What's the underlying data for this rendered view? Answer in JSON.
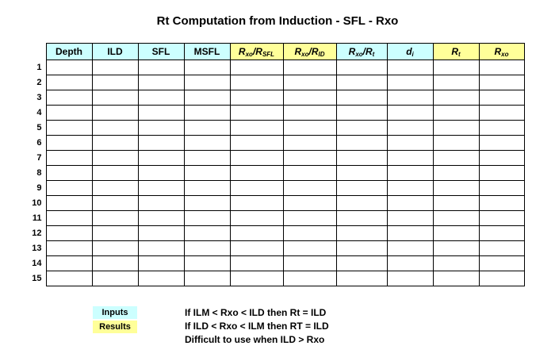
{
  "title": "Rt Computation from Induction - SFL - Rxo",
  "columns": {
    "depth": "Depth",
    "ild": "ILD",
    "sfl": "SFL",
    "msfl": "MSFL",
    "rxo_rsfl": {
      "a": "R",
      "a_sub": "xo",
      "sep": "/",
      "b": "R",
      "b_sub": "SFL"
    },
    "rxo_rid": {
      "a": "R",
      "a_sub": "xo",
      "sep": "/",
      "b": "R",
      "b_sub": "ID"
    },
    "rxo_rt": {
      "a": "R",
      "a_sub": "xo",
      "sep": "/",
      "b": "R",
      "b_sub": "t"
    },
    "di": {
      "a": "d",
      "a_sub": "i"
    },
    "rt": {
      "a": "R",
      "a_sub": "t"
    },
    "rxo": {
      "a": "R",
      "a_sub": "xo"
    }
  },
  "rows": [
    "1",
    "2",
    "3",
    "4",
    "5",
    "6",
    "7",
    "8",
    "9",
    "10",
    "11",
    "12",
    "13",
    "14",
    "15"
  ],
  "legend": {
    "inputs": "Inputs",
    "results": "Results"
  },
  "notes": [
    "If ILM < Rxo < ILD then Rt = ILD",
    "If ILD < Rxo < ILM then RT = ILD",
    "Difficult to use when ILD > Rxo"
  ],
  "colors": {
    "input": "#ccffff",
    "result": "#ffff99"
  }
}
